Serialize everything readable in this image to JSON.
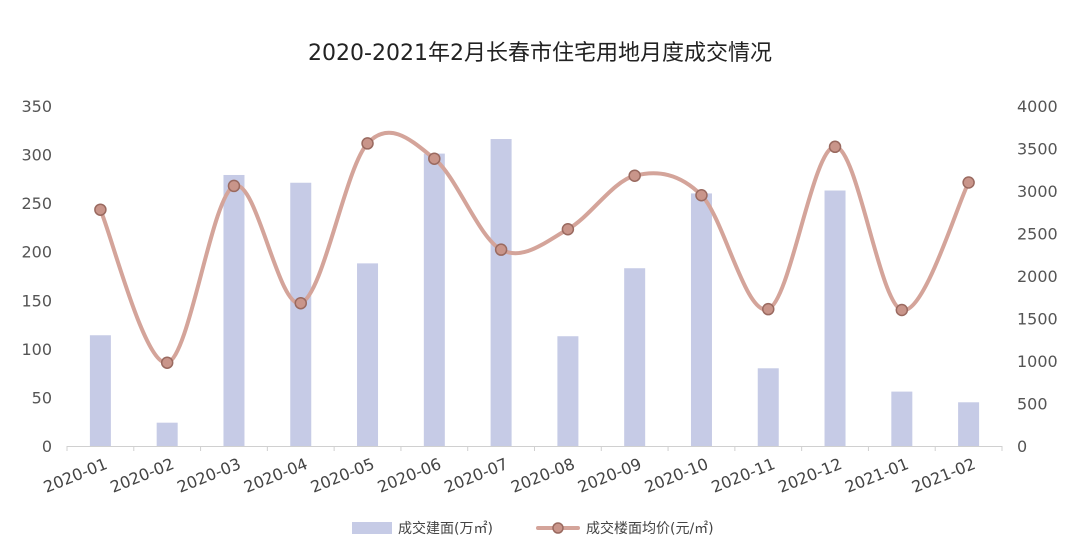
{
  "chart_data": {
    "type": "bar+line",
    "title": "2020-2021年2月长春市住宅用地月度成交情况",
    "categories": [
      "2020-01",
      "2020-02",
      "2020-03",
      "2020-04",
      "2020-05",
      "2020-06",
      "2020-07",
      "2020-08",
      "2020-09",
      "2020-10",
      "2020-11",
      "2020-12",
      "2021-01",
      "2021-02"
    ],
    "series": [
      {
        "name": "成交建面(万㎡)",
        "kind": "bar",
        "axis": "left",
        "color": "#c6cbe6",
        "values": [
          114,
          24,
          279,
          271,
          188,
          301,
          316,
          113,
          183,
          260,
          80,
          263,
          56,
          45
        ]
      },
      {
        "name": "成交楼面均价(元/㎡)",
        "kind": "line",
        "axis": "right",
        "color": "#d4a49a",
        "marker_color": "#c9958a",
        "values": [
          2780,
          980,
          3060,
          1680,
          3560,
          3380,
          2310,
          2550,
          3180,
          2950,
          1610,
          3520,
          1600,
          3100
        ]
      }
    ],
    "y_left": {
      "min": 0,
      "max": 350,
      "ticks": [
        "0",
        "50",
        "100",
        "150",
        "200",
        "250",
        "300",
        "350"
      ]
    },
    "y_right": {
      "min": 0,
      "max": 4000,
      "ticks": [
        "0",
        "500",
        "1000",
        "1500",
        "2000",
        "2500",
        "3000",
        "3500",
        "4000"
      ]
    },
    "grid": false,
    "legend_position": "bottom"
  }
}
